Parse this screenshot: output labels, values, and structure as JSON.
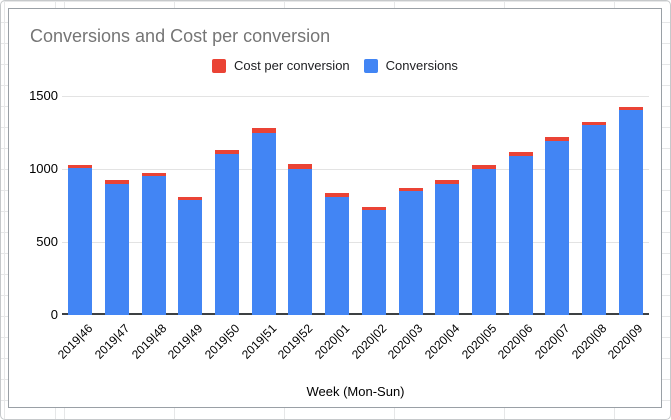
{
  "chart": {
    "title": "Conversions and Cost per conversion",
    "x_axis_title": "Week (Mon-Sun)",
    "legend": [
      {
        "label": "Cost per conversion",
        "color": "#EA4335"
      },
      {
        "label": "Conversions",
        "color": "#4285F4"
      }
    ],
    "colors": {
      "conversions_blue": "#4285F4",
      "cost_red": "#EA4335",
      "gridline": "#e3e3e3",
      "axis_line": "#3c4043",
      "title_text": "#757575",
      "tick_text": "#000000",
      "card_border": "#9aa0a6"
    }
  },
  "chart_data": {
    "type": "bar",
    "stacked": true,
    "title": "Conversions and Cost per conversion",
    "xlabel": "Week (Mon-Sun)",
    "ylabel": "",
    "ylim": [
      0,
      1500
    ],
    "y_ticks": [
      0,
      500,
      1000,
      1500
    ],
    "grid": true,
    "legend_position": "top",
    "categories": [
      "2019|46",
      "2019|47",
      "2019|48",
      "2019|49",
      "2019|50",
      "2019|51",
      "2019|52",
      "2020|01",
      "2020|02",
      "2020|03",
      "2020|04",
      "2020|05",
      "2020|06",
      "2020|07",
      "2020|08",
      "2020|09"
    ],
    "stack_order_bottom_to_top": [
      "Conversions",
      "Cost per conversion"
    ],
    "series": [
      {
        "name": "Conversions",
        "color": "#4285F4",
        "values": [
          1005,
          900,
          950,
          785,
          1100,
          1250,
          1000,
          805,
          720,
          850,
          900,
          1000,
          1090,
          1195,
          1300,
          1405
        ]
      },
      {
        "name": "Cost per conversion",
        "color": "#EA4335",
        "values": [
          25,
          22,
          24,
          22,
          28,
          34,
          33,
          30,
          19,
          22,
          23,
          29,
          24,
          22,
          23,
          23
        ]
      }
    ]
  }
}
